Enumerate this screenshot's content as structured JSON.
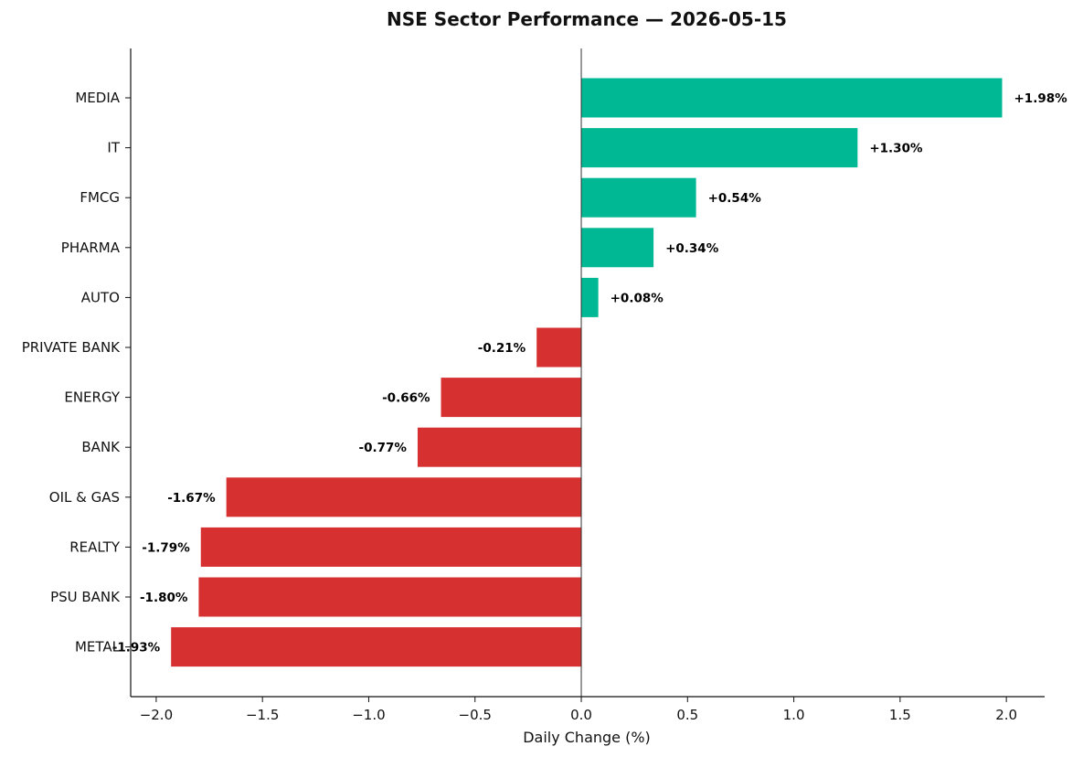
{
  "chart_data": {
    "type": "bar",
    "orientation": "horizontal",
    "title": "NSE Sector Performance — 2026-05-15",
    "xlabel": "Daily Change (%)",
    "ylabel": "",
    "xlim": [
      -2.12,
      2.18
    ],
    "xticks": [
      -2.0,
      -1.5,
      -1.0,
      -0.5,
      0.0,
      0.5,
      1.0,
      1.5,
      2.0
    ],
    "xtick_labels": [
      "−2.0",
      "−1.5",
      "−1.0",
      "−0.5",
      "0.0",
      "0.5",
      "1.0",
      "1.5",
      "2.0"
    ],
    "grid": false,
    "legend": "none",
    "categories": [
      "MEDIA",
      "IT",
      "FMCG",
      "PHARMA",
      "AUTO",
      "PRIVATE BANK",
      "ENERGY",
      "BANK",
      "OIL & GAS",
      "REALTY",
      "PSU BANK",
      "METAL"
    ],
    "values": [
      1.98,
      1.3,
      0.54,
      0.34,
      0.08,
      -0.21,
      -0.66,
      -0.77,
      -1.67,
      -1.79,
      -1.8,
      -1.93
    ],
    "data_labels": [
      "+1.98%",
      "+1.30%",
      "+0.54%",
      "+0.34%",
      "+0.08%",
      "-0.21%",
      "-0.66%",
      "-0.77%",
      "-1.67%",
      "-1.79%",
      "-1.80%",
      "-1.93%"
    ],
    "colors": {
      "positive": "#00b894",
      "negative": "#d63031",
      "axis": "#111111"
    }
  }
}
